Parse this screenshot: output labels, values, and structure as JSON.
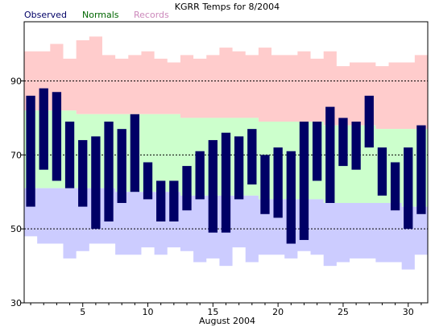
{
  "chart_data": {
    "type": "bar",
    "title": "KGRR Temps for 8/2004",
    "xlabel": "August 2004",
    "ylabel": "",
    "xlim": [
      0.5,
      31.5
    ],
    "ylim": [
      30,
      106
    ],
    "yticks": [
      30,
      50,
      70,
      90
    ],
    "xticks": [
      5,
      10,
      15,
      20,
      25,
      30
    ],
    "grid": "dashed horizontal at 50, 70, 90",
    "legend": [
      {
        "key": "observed",
        "label": "Observed",
        "color": "#000066"
      },
      {
        "key": "normals",
        "label": "Normals",
        "color": "#006600"
      },
      {
        "key": "records",
        "label": "Records",
        "color": "#cc88bb"
      }
    ],
    "colors": {
      "record_high_band": "#ffcccc",
      "normal_band": "#ccffcc",
      "record_low_band": "#ccccff",
      "observed_bar": "#000066",
      "gridline": "#000000"
    },
    "days": [
      1,
      2,
      3,
      4,
      5,
      6,
      7,
      8,
      9,
      10,
      11,
      12,
      13,
      14,
      15,
      16,
      17,
      18,
      19,
      20,
      21,
      22,
      23,
      24,
      25,
      26,
      27,
      28,
      29,
      30,
      31
    ],
    "record_high": [
      98,
      98,
      100,
      96,
      101,
      102,
      97,
      96,
      97,
      98,
      96,
      95,
      97,
      96,
      97,
      99,
      98,
      97,
      99,
      97,
      97,
      98,
      96,
      98,
      94,
      95,
      95,
      94,
      95,
      95,
      97
    ],
    "normal_high": [
      82,
      82,
      82,
      82,
      81,
      81,
      81,
      81,
      81,
      81,
      81,
      81,
      80,
      80,
      80,
      80,
      80,
      80,
      79,
      79,
      79,
      79,
      79,
      78,
      78,
      78,
      78,
      77,
      77,
      77,
      77
    ],
    "normal_low": [
      61,
      61,
      61,
      61,
      61,
      61,
      61,
      60,
      60,
      60,
      60,
      60,
      59,
      59,
      59,
      59,
      59,
      59,
      58,
      58,
      58,
      58,
      58,
      57,
      57,
      57,
      57,
      57,
      57,
      56,
      56
    ],
    "record_low": [
      48,
      46,
      46,
      42,
      44,
      46,
      46,
      43,
      43,
      45,
      43,
      45,
      44,
      41,
      42,
      40,
      45,
      41,
      43,
      43,
      42,
      44,
      43,
      40,
      41,
      42,
      42,
      41,
      41,
      39,
      43
    ],
    "observed_high": [
      86,
      88,
      87,
      79,
      74,
      75,
      79,
      77,
      81,
      68,
      63,
      63,
      67,
      71,
      74,
      76,
      75,
      77,
      70,
      72,
      71,
      79,
      79,
      83,
      80,
      79,
      86,
      72,
      68,
      72,
      78
    ],
    "observed_low": [
      56,
      66,
      63,
      61,
      56,
      50,
      52,
      57,
      60,
      58,
      52,
      52,
      55,
      58,
      49,
      49,
      58,
      62,
      54,
      53,
      46,
      47,
      63,
      57,
      67,
      66,
      72,
      59,
      55,
      50,
      54
    ]
  }
}
